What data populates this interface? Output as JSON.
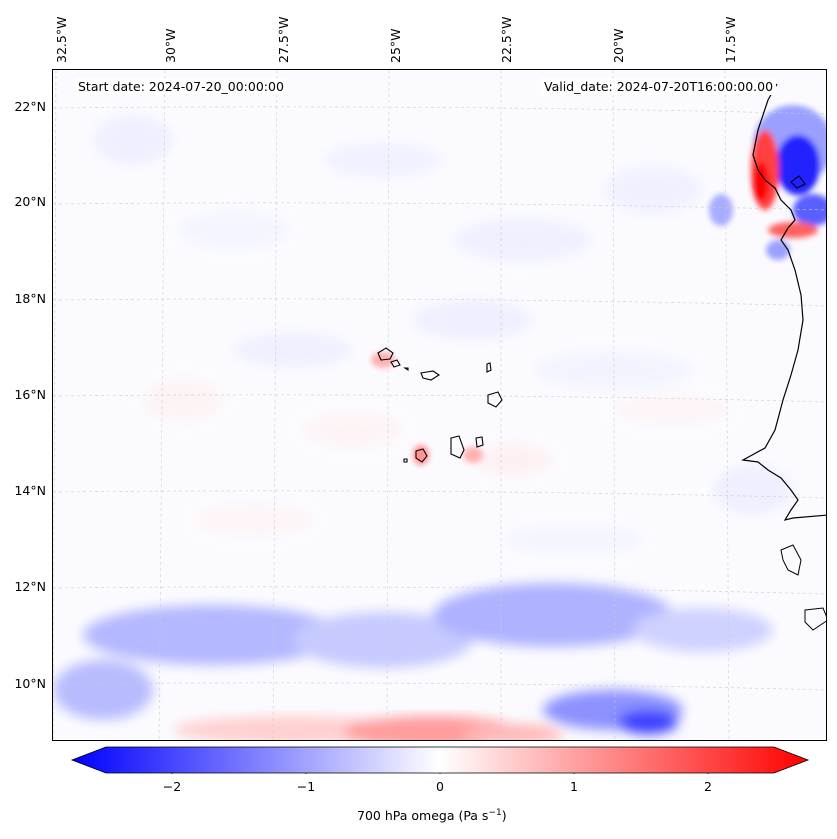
{
  "map": {
    "start_label": "Start date: 2024-07-20_00:00:00",
    "valid_label": "Valid_date: 2024-07-20T16:00:00.00",
    "lon_labels": [
      "32.5°W",
      "30°W",
      "27.5°W",
      "25°W",
      "22.5°W",
      "20°W",
      "17.5°W"
    ],
    "lat_labels": [
      "22°N",
      "20°N",
      "18°N",
      "16°N",
      "14°N",
      "12°N",
      "10°N"
    ]
  },
  "colorbar": {
    "ticks": [
      "−2",
      "−1",
      "0",
      "1",
      "2"
    ],
    "label": "700 hPa omega (Pa s",
    "label_sup": "−1",
    "label_end": ")",
    "min_color": "#0000ff",
    "mid_color": "#ffffff",
    "max_color": "#ff0000"
  }
}
